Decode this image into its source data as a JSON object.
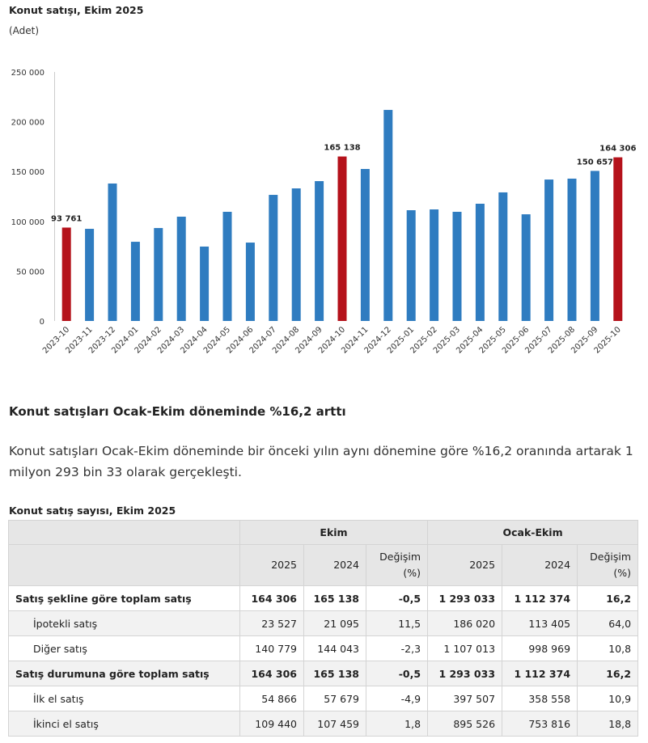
{
  "chart_data": {
    "type": "bar",
    "title": "Konut satışı, Ekim 2025",
    "subtitle": "(Adet)",
    "categories": [
      "2023-10",
      "2023-11",
      "2023-12",
      "2024-01",
      "2024-02",
      "2024-03",
      "2024-04",
      "2024-05",
      "2024-06",
      "2024-07",
      "2024-08",
      "2024-09",
      "2024-10",
      "2024-11",
      "2024-12",
      "2025-01",
      "2025-02",
      "2025-03",
      "2025-04",
      "2025-05",
      "2025-06",
      "2025-07",
      "2025-08",
      "2025-09",
      "2025-10"
    ],
    "values": [
      93761,
      92500,
      138000,
      79500,
      93300,
      104700,
      74700,
      109600,
      78700,
      126600,
      133100,
      140400,
      165138,
      152600,
      211900,
      111200,
      112000,
      109600,
      117700,
      129100,
      107100,
      142000,
      142900,
      150657,
      164306
    ],
    "value_labels": [
      "93 761",
      null,
      null,
      null,
      null,
      null,
      null,
      null,
      null,
      null,
      null,
      null,
      "165 138",
      null,
      null,
      null,
      null,
      null,
      null,
      null,
      null,
      null,
      null,
      "150 657",
      "164 306"
    ],
    "colors": [
      "#b5121b",
      "#2f7cc0",
      "#2f7cc0",
      "#2f7cc0",
      "#2f7cc0",
      "#2f7cc0",
      "#2f7cc0",
      "#2f7cc0",
      "#2f7cc0",
      "#2f7cc0",
      "#2f7cc0",
      "#2f7cc0",
      "#b5121b",
      "#2f7cc0",
      "#2f7cc0",
      "#2f7cc0",
      "#2f7cc0",
      "#2f7cc0",
      "#2f7cc0",
      "#2f7cc0",
      "#2f7cc0",
      "#2f7cc0",
      "#2f7cc0",
      "#2f7cc0",
      "#b5121b"
    ],
    "ylim": [
      0,
      250000
    ],
    "yticks": [
      0,
      {
        "value": 50000,
        "label": "50 000"
      },
      {
        "value": 100000,
        "label": "100 000"
      },
      {
        "value": 150000,
        "label": "150 000"
      },
      {
        "value": 200000,
        "label": "200 000"
      },
      {
        "value": 250000,
        "label": "250 000"
      }
    ],
    "grid": false
  },
  "section": {
    "heading": "Konut satışları Ocak-Ekim döneminde %16,2 arttı",
    "paragraph": "Konut satışları Ocak-Ekim döneminde bir önceki yılın aynı dönemine göre %16,2 oranında artarak 1 milyon 293 bin 33 olarak gerçekleşti."
  },
  "table": {
    "title": "Konut satış sayısı, Ekim 2025",
    "groups": [
      "Ekim",
      "Ocak-Ekim"
    ],
    "columns": [
      "2025",
      "2024",
      "Değişim (%)",
      "2025",
      "2024",
      "Değişim (%)"
    ],
    "rows": [
      {
        "label": "Satış şekline göre toplam satış",
        "cells": [
          "164 306",
          "165 138",
          "-0,5",
          "1 293 033",
          "1 112 374",
          "16,2"
        ]
      },
      {
        "label": "İpotekli satış",
        "cells": [
          "23 527",
          "21 095",
          "11,5",
          "186 020",
          "113 405",
          "64,0"
        ]
      },
      {
        "label": "Diğer satış",
        "cells": [
          "140 779",
          "144 043",
          "-2,3",
          "1 107 013",
          "998 969",
          "10,8"
        ]
      },
      {
        "label": "Satış durumuna göre toplam satış",
        "cells": [
          "164 306",
          "165 138",
          "-0,5",
          "1 293 033",
          "1 112 374",
          "16,2"
        ]
      },
      {
        "label": "İlk el satış",
        "cells": [
          "54 866",
          "57 679",
          "-4,9",
          "397 507",
          "358 558",
          "10,9"
        ]
      },
      {
        "label": "İkinci el satış",
        "cells": [
          "109 440",
          "107 459",
          "1,8",
          "895 526",
          "753 816",
          "18,8"
        ]
      }
    ]
  }
}
